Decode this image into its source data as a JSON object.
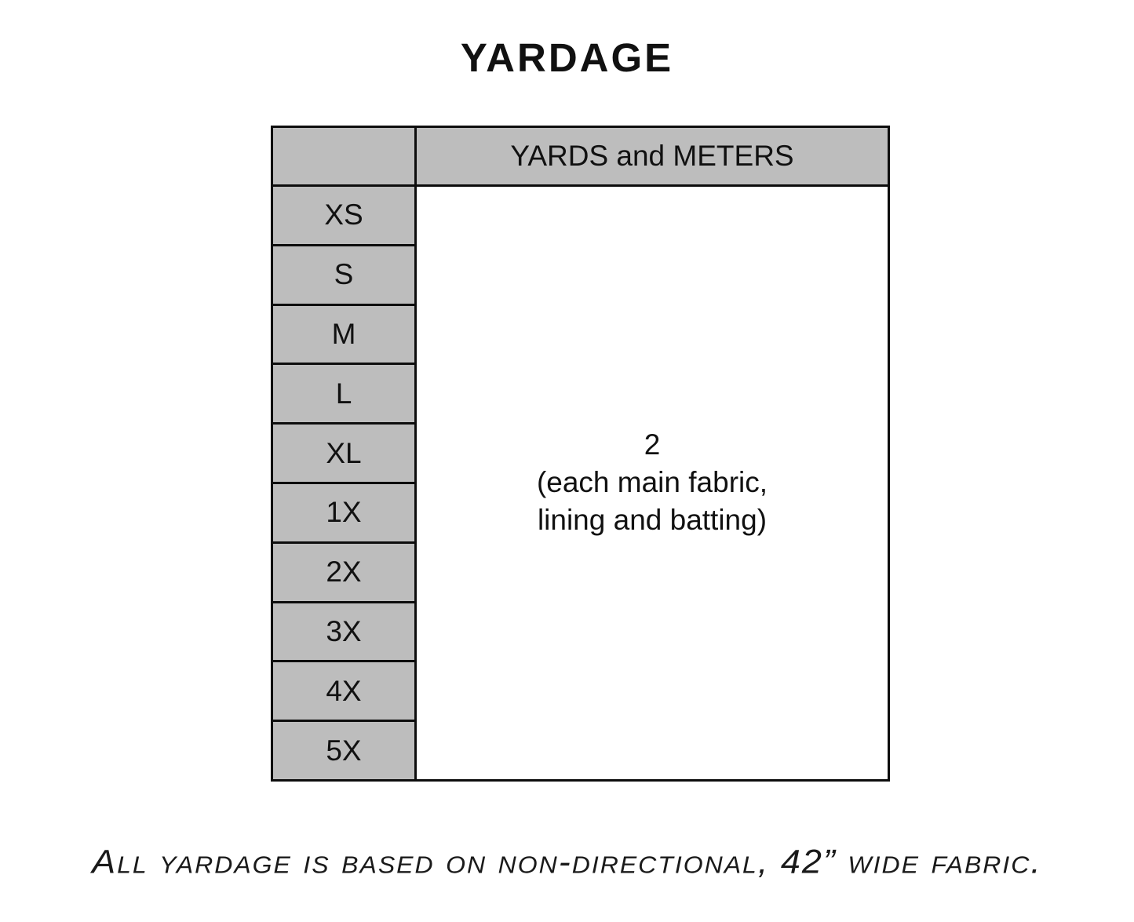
{
  "title": "YARDAGE",
  "table": {
    "header": "YARDS and METERS",
    "sizes": [
      "XS",
      "S",
      "M",
      "L",
      "XL",
      "1X",
      "2X",
      "3X",
      "4X",
      "5X"
    ],
    "yardage": {
      "value": "2",
      "detail_line1": "(each main fabric,",
      "detail_line2": "lining and batting)"
    }
  },
  "footnote": "All yardage is based on non-directional, 42” wide fabric.",
  "colors": {
    "cell_gray": "#bdbdbd",
    "border_black": "#0d0d0d",
    "background": "#ffffff",
    "text": "#111111"
  }
}
